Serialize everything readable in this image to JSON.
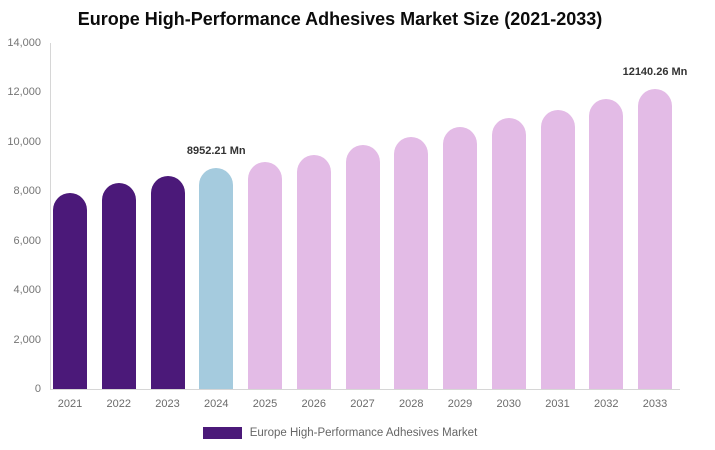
{
  "chart_data": {
    "type": "bar",
    "title": "Europe High-Performance Adhesives Market Size (2021-2033)",
    "xlabel": "",
    "ylabel": "",
    "categories": [
      "2021",
      "2022",
      "2023",
      "2024",
      "2025",
      "2026",
      "2027",
      "2028",
      "2029",
      "2030",
      "2031",
      "2032",
      "2033"
    ],
    "values": [
      7940,
      8330,
      8620,
      8952.21,
      9180,
      9470,
      9880,
      10220,
      10600,
      10950,
      11310,
      11720,
      12140.26
    ],
    "bar_colors": [
      "#4B1979",
      "#4B1979",
      "#4B1979",
      "#A5CBDE",
      "#E3BBE6",
      "#E3BBE6",
      "#E3BBE6",
      "#E3BBE6",
      "#E3BBE6",
      "#E3BBE6",
      "#E3BBE6",
      "#E3BBE6",
      "#E3BBE6"
    ],
    "value_labels": [
      {
        "category": "2024",
        "text": "8952.21 Mn"
      },
      {
        "category": "2033",
        "text": "12140.26 Mn"
      }
    ],
    "ylim": [
      0,
      14000
    ],
    "yticks": [
      {
        "value": 0,
        "label": "0"
      },
      {
        "value": 2000,
        "label": "2,000"
      },
      {
        "value": 4000,
        "label": "4,000"
      },
      {
        "value": 6000,
        "label": "6,000"
      },
      {
        "value": 8000,
        "label": "8,000"
      },
      {
        "value": 10000,
        "label": "10,000"
      },
      {
        "value": 12000,
        "label": "12,000"
      },
      {
        "value": 14000,
        "label": "14,000"
      }
    ],
    "grid": "off",
    "legend": {
      "position": "bottom-center",
      "label": "Europe High-Performance Adhesives Market",
      "swatch_color": "#4B1979"
    },
    "colors": {
      "historical_bar": "#4B1979",
      "current_year_bar": "#A5CBDE",
      "forecast_bar": "#E3BBE6",
      "axis_line": "#d6d6d6",
      "tick_text": "#757575",
      "xlabel_text": "#6b6b6b",
      "value_label_text": "#333333",
      "title_text": "#0b0b0b",
      "legend_text": "#666666",
      "background": "#ffffff"
    }
  }
}
